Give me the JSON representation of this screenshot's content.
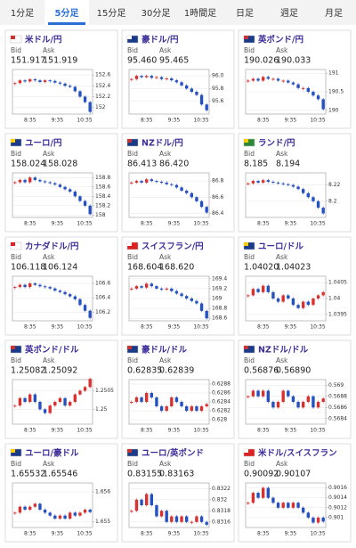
{
  "tabs": [
    {
      "label": "1分足"
    },
    {
      "label": "5分足",
      "selected": true
    },
    {
      "label": "15分足"
    },
    {
      "label": "30分足"
    },
    {
      "label": "1時間足"
    },
    {
      "label": "日足"
    },
    {
      "label": "週足"
    },
    {
      "label": "月足"
    }
  ],
  "labels": {
    "bid": "Bid",
    "ask": "Ask"
  },
  "xticks": [
    "8:35",
    "9:35",
    "10:35"
  ],
  "cards": [
    {
      "title": "米ドル/円",
      "bid": "151.917",
      "ask": "151.919",
      "chart": {
        "ylim": [
          151.88,
          152.7
        ],
        "yticks": [
          152,
          152.2,
          152.4,
          152.6
        ],
        "values": [
          152.45,
          152.5,
          152.48,
          152.52,
          152.5,
          152.47,
          152.5,
          152.49,
          152.46,
          152.44,
          152.4,
          152.38,
          152.3,
          152.2,
          152.1,
          151.92
        ]
      }
    },
    {
      "title": "豪ドル/円",
      "bid": "95.460",
      "ask": "95.465",
      "chart": {
        "ylim": [
          95.4,
          96.1
        ],
        "yticks": [
          95.6,
          95.8,
          {
            "value": 96,
            "label": "96.0"
          }
        ],
        "values": [
          95.95,
          96.0,
          95.98,
          96.0,
          95.97,
          95.98,
          95.95,
          95.96,
          95.93,
          95.9,
          95.85,
          95.8,
          95.75,
          95.7,
          95.55,
          95.46
        ]
      }
    },
    {
      "title": "英ポンド/円",
      "bid": "190.026",
      "ask": "190.033",
      "chart": {
        "ylim": [
          189.9,
          191.1
        ],
        "yticks": [
          190,
          190.5,
          191
        ],
        "values": [
          190.8,
          190.85,
          190.8,
          190.9,
          190.85,
          190.85,
          190.8,
          190.8,
          190.75,
          190.7,
          190.6,
          190.6,
          190.5,
          190.4,
          190.3,
          190.03
        ]
      }
    },
    {
      "title": "ユーロ/円",
      "bid": "158.024",
      "ask": "158.028",
      "chart": {
        "ylim": [
          157.95,
          158.9
        ],
        "yticks": [
          158,
          158.2,
          158.4,
          158.6,
          158.8
        ],
        "values": [
          158.7,
          158.75,
          158.7,
          158.8,
          158.75,
          158.72,
          158.7,
          158.68,
          158.65,
          158.6,
          158.55,
          158.5,
          158.4,
          158.3,
          158.2,
          158.02
        ]
      }
    },
    {
      "title": "NZドル/円",
      "bid": "86.413",
      "ask": "86.420",
      "chart": {
        "ylim": [
          86.35,
          86.9
        ],
        "yticks": [
          86.4,
          86.6,
          86.8
        ],
        "values": [
          86.78,
          86.8,
          86.78,
          86.82,
          86.8,
          86.79,
          86.78,
          86.76,
          86.75,
          86.72,
          86.68,
          86.65,
          86.6,
          86.55,
          86.48,
          86.41
        ]
      }
    },
    {
      "title": "ランド/円",
      "bid": "8.185",
      "ask": "8.194",
      "chart": {
        "ylim": [
          8.18,
          8.235
        ],
        "yticks": [
          8.2,
          8.22
        ],
        "values": [
          8.222,
          8.225,
          8.223,
          8.226,
          8.224,
          8.223,
          8.222,
          8.221,
          8.22,
          8.218,
          8.215,
          8.21,
          8.205,
          8.2,
          8.192,
          8.185
        ]
      }
    },
    {
      "title": "カナダドル/円",
      "bid": "106.118",
      "ask": "106.124",
      "chart": {
        "ylim": [
          106.08,
          106.7
        ],
        "yticks": [
          106.2,
          106.4,
          106.6
        ],
        "values": [
          106.55,
          106.58,
          106.55,
          106.6,
          106.58,
          106.56,
          106.55,
          106.53,
          106.5,
          106.48,
          106.45,
          106.42,
          106.38,
          106.3,
          106.22,
          106.12
        ]
      }
    },
    {
      "title": "スイスフラン/円",
      "bid": "168.604",
      "ask": "168.620",
      "chart": {
        "ylim": [
          168.55,
          169.45
        ],
        "yticks": [
          168.6,
          168.8,
          169,
          169.2,
          169.4
        ],
        "values": [
          169.2,
          169.25,
          169.22,
          169.3,
          169.25,
          169.2,
          169.18,
          169.2,
          169.15,
          169.1,
          169.05,
          169.0,
          168.95,
          168.9,
          168.75,
          168.6
        ]
      }
    },
    {
      "title": "ユーロ/ドル",
      "bid": "1.04020",
      "ask": "1.04023",
      "chart": {
        "ylim": [
          1.0393,
          1.0407
        ],
        "yticks": [
          1.0395,
          1.04,
          1.0405
        ],
        "values": [
          1.0401,
          1.0403,
          1.0402,
          1.0404,
          1.0402,
          1.04,
          1.0399,
          1.0401,
          1.04,
          1.0398,
          1.0397,
          1.0399,
          1.0398,
          1.04,
          1.0401,
          1.0402
        ]
      }
    },
    {
      "title": "英ポンド/ドル",
      "bid": "1.25082",
      "ask": "1.25092",
      "chart": {
        "ylim": [
          1.2496,
          1.2508
        ],
        "yticks": [
          1.25,
          1.2505
        ],
        "values": [
          1.2501,
          1.2503,
          1.2502,
          1.2504,
          1.2502,
          1.25,
          1.2499,
          1.2501,
          1.2502,
          1.2503,
          1.2501,
          1.2502,
          1.2504,
          1.2505,
          1.2506,
          1.25082
        ]
      }
    },
    {
      "title": "豪ドル/ドル",
      "bid": "0.62835",
      "ask": "0.62839",
      "chart": {
        "ylim": [
          0.6279,
          0.6289
        ],
        "yticks": [
          0.628,
          0.6282,
          0.6284,
          0.6286,
          0.6288
        ],
        "values": [
          0.6284,
          0.6285,
          0.6284,
          0.6286,
          0.6285,
          0.6283,
          0.6282,
          0.6283,
          0.6285,
          0.6284,
          0.6283,
          0.6282,
          0.6283,
          0.6282,
          0.6283,
          0.62835
        ]
      }
    },
    {
      "title": "NZドル/ドル",
      "bid": "0.56876",
      "ask": "0.56890",
      "chart": {
        "ylim": [
          0.5683,
          0.5691
        ],
        "yticks": [
          0.5684,
          0.5686,
          0.5688,
          0.569
        ],
        "values": [
          0.5688,
          0.5689,
          0.5688,
          0.5689,
          0.5687,
          0.5686,
          0.5687,
          0.5689,
          0.5688,
          0.5687,
          0.5686,
          0.5687,
          0.5688,
          0.5686,
          0.5687,
          0.56876
        ]
      }
    },
    {
      "title": "ユーロ/豪ドル",
      "bid": "1.65532",
      "ask": "1.65546",
      "chart": {
        "ylim": [
          1.6548,
          1.6563
        ],
        "yticks": [
          1.655,
          1.656
        ],
        "values": [
          1.6553,
          1.6555,
          1.6554,
          1.6555,
          1.6556,
          1.6554,
          1.6553,
          1.6552,
          1.6551,
          1.6552,
          1.6551,
          1.6553,
          1.6552,
          1.6553,
          1.6554,
          1.65532
        ]
      }
    },
    {
      "title": "ユーロ/英ポンド",
      "bid": "0.83155",
      "ask": "0.83163",
      "chart": {
        "ylim": [
          0.8315,
          0.8323
        ],
        "yticks": [
          0.8316,
          0.8318,
          0.832,
          0.8322
        ],
        "values": [
          0.8318,
          0.832,
          0.8319,
          0.8321,
          0.8319,
          0.8317,
          0.8318,
          0.8316,
          0.8317,
          0.8316,
          0.8317,
          0.8316,
          0.8316,
          0.8317,
          0.8316,
          0.83155
        ]
      }
    },
    {
      "title": "米ドル/スイスフラン",
      "bid": "0.90092",
      "ask": "0.90107",
      "chart": {
        "ylim": [
          0.9008,
          0.9017
        ],
        "yticks": [
          0.901,
          0.9012,
          0.9014,
          0.9016
        ],
        "values": [
          0.9013,
          0.9015,
          0.9014,
          0.9016,
          0.9014,
          0.9013,
          0.9012,
          0.9013,
          0.9012,
          0.9013,
          0.9012,
          0.9011,
          0.901,
          0.9009,
          0.901,
          0.90092
        ]
      }
    }
  ]
}
